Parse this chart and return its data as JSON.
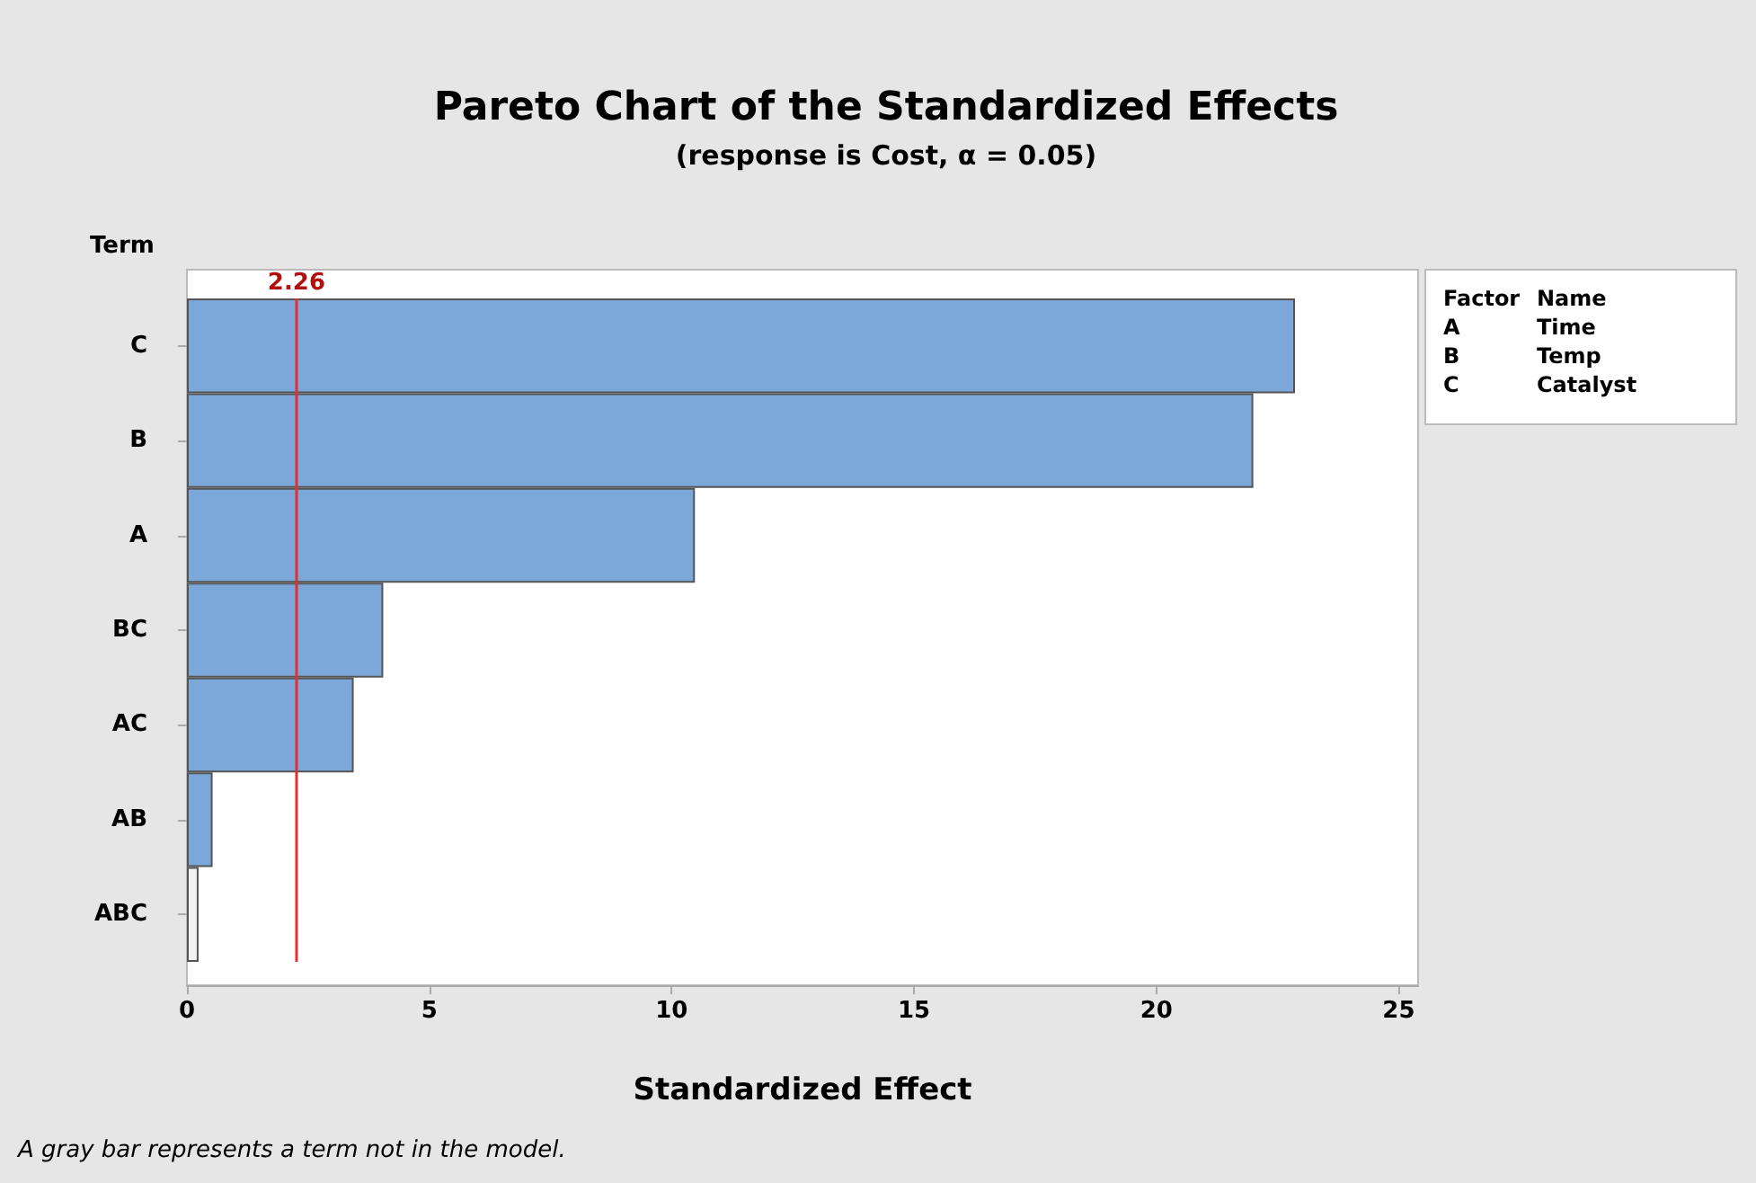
{
  "chart_data": {
    "type": "bar",
    "orientation": "horizontal",
    "title": "Pareto Chart of the Standardized Effects",
    "subtitle": "(response is Cost, α = 0.05)",
    "xlabel": "Standardized Effect",
    "ylabel": "Term",
    "categories": [
      "C",
      "B",
      "A",
      "BC",
      "AC",
      "AB",
      "ABC"
    ],
    "values": [
      22.86,
      22.0,
      10.48,
      4.05,
      3.44,
      0.53,
      0.24
    ],
    "colors": [
      "#7ba7d9",
      "#7ba7d9",
      "#7ba7d9",
      "#7ba7d9",
      "#7ba7d9",
      "#7ba7d9",
      "#f2f2f2"
    ],
    "xlim": [
      0,
      25.4
    ],
    "xticks": [
      0,
      5,
      10,
      15,
      20,
      25
    ],
    "ref_lines": [
      {
        "axis": "x",
        "value": 2.26,
        "label": "2.26",
        "color": "#e03030"
      }
    ],
    "annotations": [
      "Factor",
      "Name",
      "A",
      "Time",
      "B",
      "Temp",
      "C",
      "Catalyst",
      "A gray bar represents a term not in the model."
    ],
    "grid": false
  }
}
